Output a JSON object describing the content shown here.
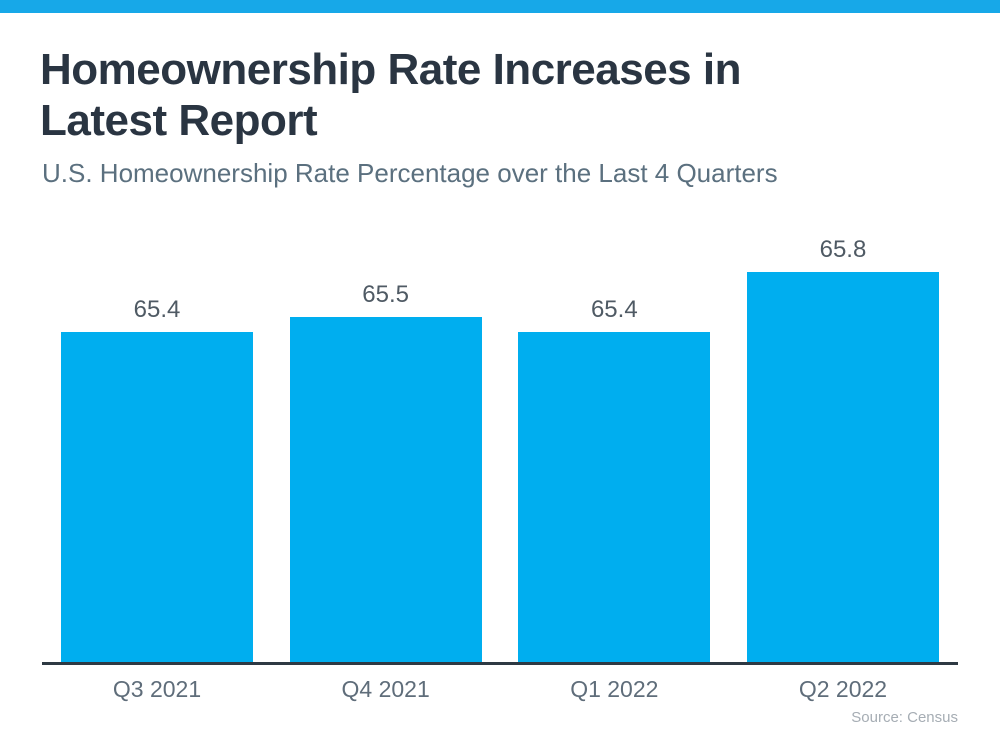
{
  "page": {
    "top_stripe_color": "#17a8e8",
    "background_color": "#ffffff"
  },
  "header": {
    "title": "Homeownership Rate Increases in Latest Report",
    "subtitle": "U.S. Homeownership Rate Percentage over the Last 4 Quarters"
  },
  "chart_data": {
    "type": "bar",
    "title": "Homeownership Rate Increases in Latest Report",
    "subtitle": "U.S. Homeownership Rate Percentage over the Last 4 Quarters",
    "categories": [
      "Q3 2021",
      "Q4 2021",
      "Q1 2022",
      "Q2 2022"
    ],
    "values": [
      65.4,
      65.5,
      65.4,
      65.8
    ],
    "value_labels": [
      "65.4",
      "65.5",
      "65.4",
      "65.8"
    ],
    "xlabel": "",
    "ylabel": "",
    "ylim": [
      63.2,
      66.13
    ],
    "grid": false,
    "legend": false,
    "bar_color": "#00aeef",
    "axis_line_color": "#2e3943",
    "value_label_color": "#4f5a64",
    "category_label_color": "#5f6d7a"
  },
  "footer": {
    "source": "Source: Census"
  }
}
